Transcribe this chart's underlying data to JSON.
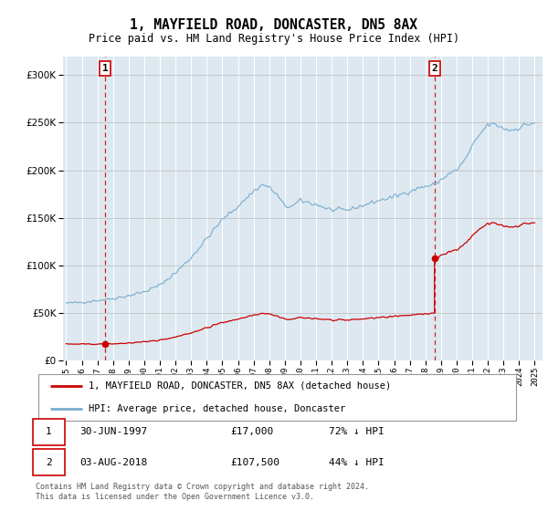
{
  "title": "1, MAYFIELD ROAD, DONCASTER, DN5 8AX",
  "subtitle": "Price paid vs. HM Land Registry's House Price Index (HPI)",
  "background_color": "#dde8f0",
  "plot_bg_color": "#dde8f0",
  "red_line_label": "1, MAYFIELD ROAD, DONCASTER, DN5 8AX (detached house)",
  "blue_line_label": "HPI: Average price, detached house, Doncaster",
  "sale1_date_label": "30-JUN-1997",
  "sale1_price_label": "£17,000",
  "sale1_hpi_label": "72% ↓ HPI",
  "sale2_date_label": "03-AUG-2018",
  "sale2_price_label": "£107,500",
  "sale2_hpi_label": "44% ↓ HPI",
  "footer": "Contains HM Land Registry data © Crown copyright and database right 2024.\nThis data is licensed under the Open Government Licence v3.0.",
  "ylim": [
    0,
    320000
  ],
  "yticks": [
    0,
    50000,
    100000,
    150000,
    200000,
    250000,
    300000
  ],
  "sale1_x": 1997.5,
  "sale1_y": 17000,
  "sale2_x": 2018.58,
  "sale2_y": 107500,
  "hpi_color": "#7aadcf",
  "price_color": "#cc0000",
  "dashed_color": "#cc0000",
  "xlim_left": 1994.8,
  "xlim_right": 2025.5
}
